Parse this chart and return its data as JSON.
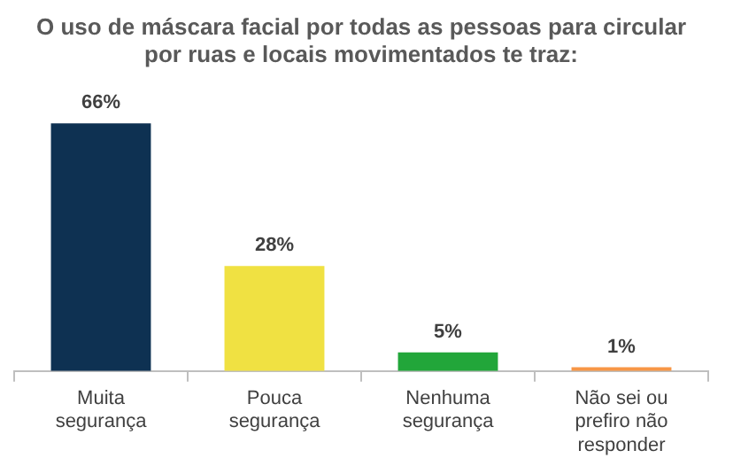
{
  "chart_data": {
    "type": "bar",
    "title": "O uso de máscara facial por todas as pessoas para circular por ruas e locais movimentados te traz:",
    "categories": [
      "Muita segurança",
      "Pouca segurança",
      "Nenhuma segurança",
      "Não sei ou prefiro não responder"
    ],
    "values": [
      66,
      28,
      5,
      1
    ],
    "colors": [
      "#0e3152",
      "#f0e142",
      "#22a63a",
      "#f79646"
    ],
    "value_labels": [
      "66%",
      "28%",
      "5%",
      "1%"
    ]
  }
}
